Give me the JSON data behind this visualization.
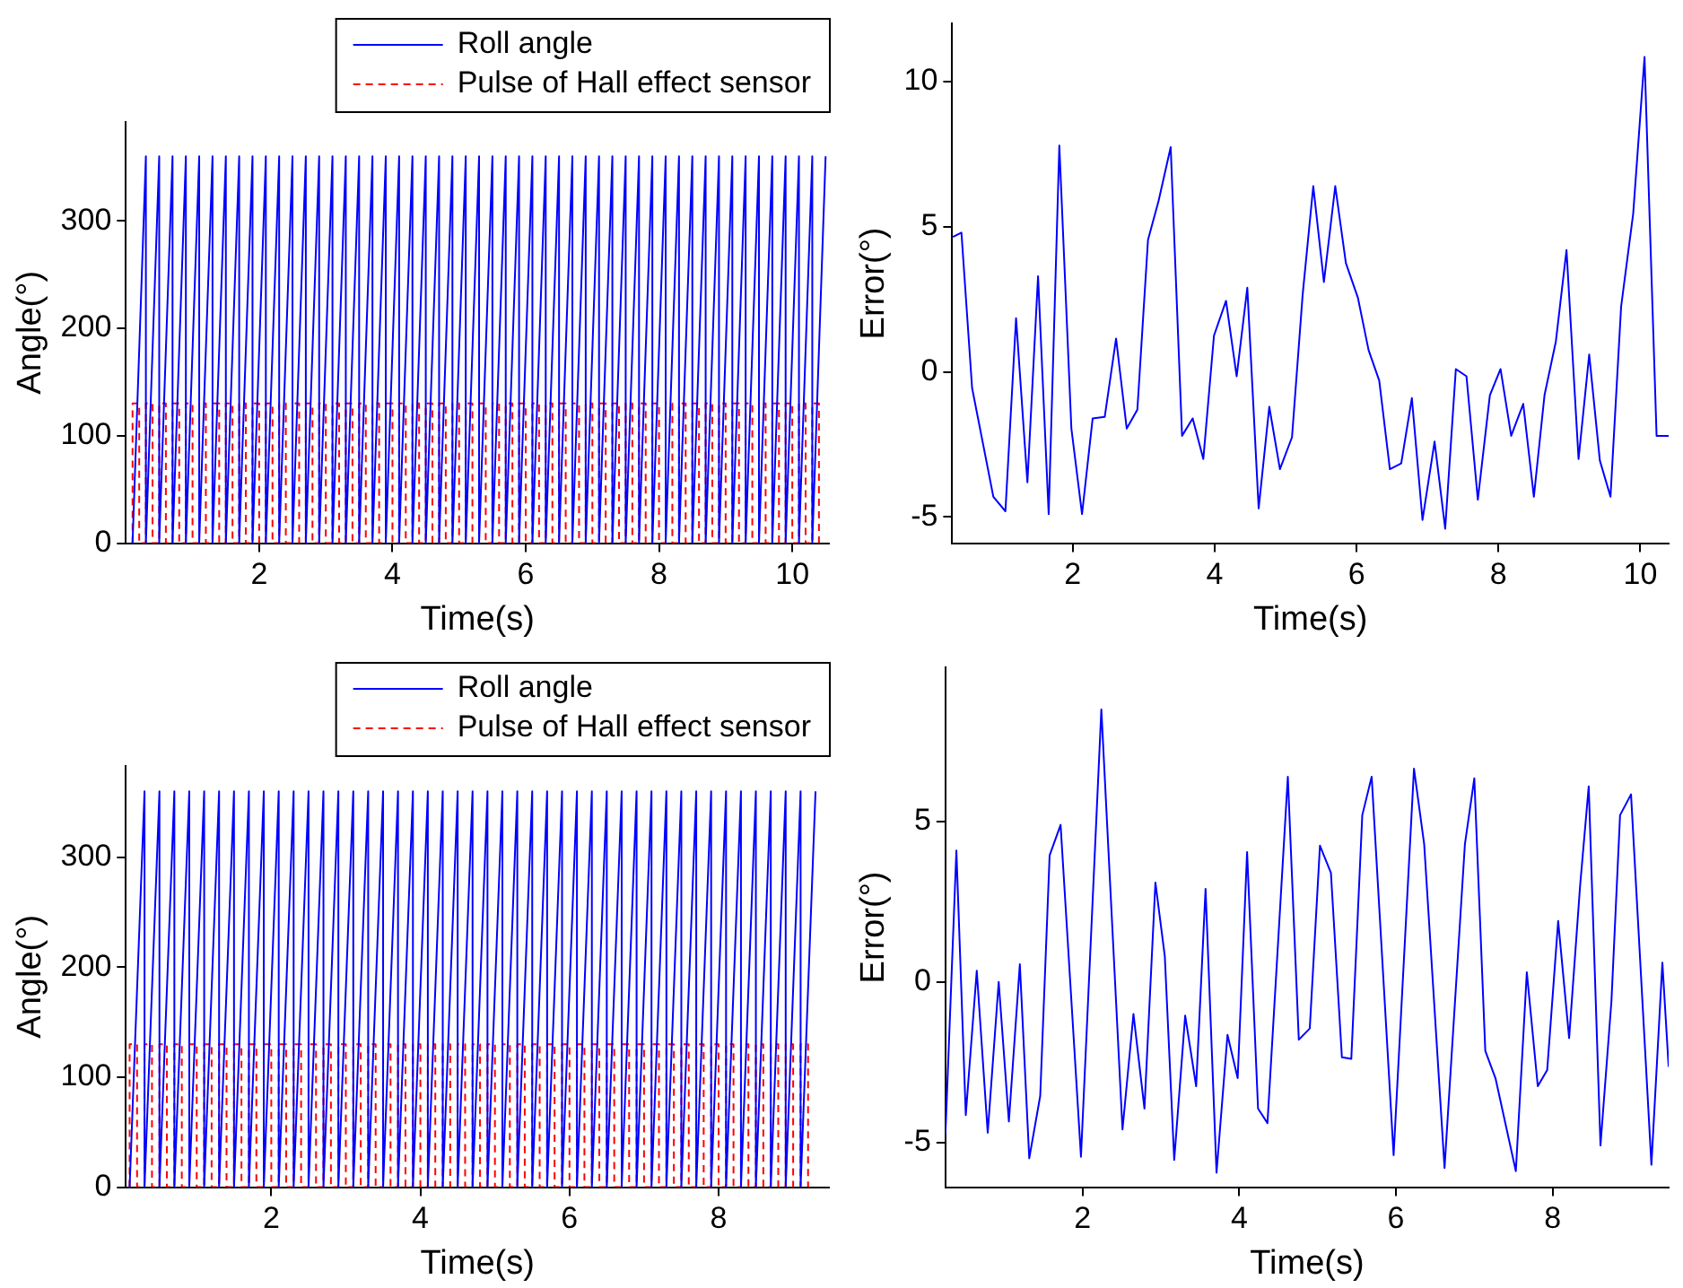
{
  "chart_data": [
    {
      "type": "line",
      "xlabel": "Time(s)",
      "ylabel": "Angle(°)",
      "xlim": [
        0,
        10.55
      ],
      "ylim": [
        0,
        392
      ],
      "xticks": [
        2,
        4,
        6,
        8,
        10
      ],
      "yticks": [
        0,
        100,
        200,
        300
      ],
      "legend": "top right",
      "series": [
        {
          "name": "Roll angle",
          "color": "#0000ff",
          "line_style": "solid",
          "x": [
            0.1,
            0.3,
            0.3,
            0.5,
            0.5,
            0.7,
            0.7,
            0.9,
            0.9,
            1.1,
            1.1,
            1.3,
            1.3,
            1.5,
            1.5,
            1.7,
            1.7,
            1.9,
            1.9,
            2.1,
            2.1,
            2.3,
            2.3,
            2.5,
            2.5,
            2.7,
            2.7,
            2.9,
            2.9,
            3.1,
            3.1,
            3.3,
            3.3,
            3.5,
            3.5,
            3.7,
            3.7,
            3.9,
            3.9,
            4.1,
            4.1,
            4.3,
            4.3,
            4.5,
            4.5,
            4.7,
            4.7,
            4.9,
            4.9,
            5.1,
            5.1,
            5.3,
            5.3,
            5.5,
            5.5,
            5.7,
            5.7,
            5.9,
            5.9,
            6.1,
            6.1,
            6.3,
            6.3,
            6.5,
            6.5,
            6.7,
            6.7,
            6.9,
            6.9,
            7.1,
            7.1,
            7.3,
            7.3,
            7.5,
            7.5,
            7.7,
            7.7,
            7.9,
            7.9,
            8.1,
            8.1,
            8.3,
            8.3,
            8.5,
            8.5,
            8.7,
            8.7,
            8.9,
            8.9,
            9.1,
            9.1,
            9.3,
            9.3,
            9.5,
            9.5,
            9.7,
            9.7,
            9.9,
            9.9,
            10.1,
            10.1,
            10.3,
            10.3,
            10.5
          ],
          "values": [
            0,
            360,
            0,
            360,
            0,
            360,
            0,
            360,
            0,
            360,
            0,
            360,
            0,
            360,
            0,
            360,
            0,
            360,
            0,
            360,
            0,
            360,
            0,
            360,
            0,
            360,
            0,
            360,
            0,
            360,
            0,
            360,
            0,
            360,
            0,
            360,
            0,
            360,
            0,
            360,
            0,
            360,
            0,
            360,
            0,
            360,
            0,
            360,
            0,
            360,
            0,
            360,
            0,
            360,
            0,
            360,
            0,
            360,
            0,
            360,
            0,
            360,
            0,
            360,
            0,
            360,
            0,
            360,
            0,
            360,
            0,
            360,
            0,
            360,
            0,
            360,
            0,
            360,
            0,
            360,
            0,
            360,
            0,
            360,
            0,
            360,
            0,
            360,
            0,
            360,
            0,
            360,
            0,
            360,
            0,
            360,
            0,
            360,
            0,
            360,
            0,
            360,
            0,
            360
          ]
        },
        {
          "name": "Pulse of Hall effect sensor",
          "color": "#ff0000",
          "line_style": "dashed",
          "x": [
            0.1,
            0.1,
            0.2,
            0.2,
            0.3,
            0.3,
            0.4,
            0.4,
            0.5,
            0.5,
            0.6,
            0.6,
            0.7,
            0.7,
            0.8,
            0.8,
            0.9,
            0.9,
            1,
            1,
            1.1,
            1.1,
            1.2,
            1.2,
            1.3,
            1.3,
            1.4,
            1.4,
            1.5,
            1.5,
            1.6,
            1.6,
            1.7,
            1.7,
            1.8,
            1.8,
            1.9,
            1.9,
            2,
            2,
            2.1,
            2.1,
            2.2,
            2.2,
            2.3,
            2.3,
            2.4,
            2.4,
            2.5,
            2.5,
            2.6,
            2.6,
            2.7,
            2.7,
            2.8,
            2.8,
            2.9,
            2.9,
            3,
            3,
            3.1,
            3.1,
            3.2,
            3.2,
            3.3,
            3.3,
            3.4,
            3.4,
            3.5,
            3.5,
            3.6,
            3.6,
            3.7,
            3.7,
            3.8,
            3.8,
            3.9,
            3.9,
            4,
            4,
            4.1,
            4.1,
            4.2,
            4.2,
            4.3,
            4.3,
            4.4,
            4.4,
            4.5,
            4.5,
            4.6,
            4.6,
            4.7,
            4.7,
            4.8,
            4.8,
            4.9,
            4.9,
            5,
            5,
            5.1,
            5.1,
            5.2,
            5.2,
            5.3,
            5.3,
            5.4,
            5.4,
            5.5,
            5.5,
            5.6,
            5.6,
            5.7,
            5.7,
            5.8,
            5.8,
            5.9,
            5.9,
            6,
            6,
            6.1,
            6.1,
            6.2,
            6.2,
            6.3,
            6.3,
            6.4,
            6.4,
            6.5,
            6.5,
            6.6,
            6.6,
            6.7,
            6.7,
            6.8,
            6.8,
            6.9,
            6.9,
            7,
            7,
            7.1,
            7.1,
            7.2,
            7.2,
            7.3,
            7.3,
            7.4,
            7.4,
            7.5,
            7.5,
            7.6,
            7.6,
            7.7,
            7.7,
            7.8,
            7.8,
            7.9,
            7.9,
            8,
            8,
            8.1,
            8.1,
            8.2,
            8.2,
            8.3,
            8.3,
            8.4,
            8.4,
            8.5,
            8.5,
            8.6,
            8.6,
            8.7,
            8.7,
            8.8,
            8.8,
            8.9,
            8.9,
            9,
            9,
            9.1,
            9.1,
            9.2,
            9.2,
            9.3,
            9.3,
            9.4,
            9.4,
            9.5,
            9.5,
            9.6,
            9.6,
            9.7,
            9.7,
            9.8,
            9.8,
            9.9,
            9.9,
            10,
            10,
            10.1,
            10.1,
            10.2,
            10.2,
            10.3,
            10.3,
            10.4,
            10.4
          ],
          "values": [
            0,
            130,
            130,
            0,
            0,
            130,
            130,
            0,
            0,
            130,
            130,
            0,
            0,
            130,
            130,
            0,
            0,
            130,
            130,
            0,
            0,
            130,
            130,
            0,
            0,
            130,
            130,
            0,
            0,
            130,
            130,
            0,
            0,
            130,
            130,
            0,
            0,
            130,
            130,
            0,
            0,
            130,
            130,
            0,
            0,
            130,
            130,
            0,
            0,
            130,
            130,
            0,
            0,
            130,
            130,
            0,
            0,
            130,
            130,
            0,
            0,
            130,
            130,
            0,
            0,
            130,
            130,
            0,
            0,
            130,
            130,
            0,
            0,
            130,
            130,
            0,
            0,
            130,
            130,
            0,
            0,
            130,
            130,
            0,
            0,
            130,
            130,
            0,
            0,
            130,
            130,
            0,
            0,
            130,
            130,
            0,
            0,
            130,
            130,
            0,
            0,
            130,
            130,
            0,
            0,
            130,
            130,
            0,
            0,
            130,
            130,
            0,
            0,
            130,
            130,
            0,
            0,
            130,
            130,
            0,
            0,
            130,
            130,
            0,
            0,
            130,
            130,
            0,
            0,
            130,
            130,
            0,
            0,
            130,
            130,
            0,
            0,
            130,
            130,
            0,
            0,
            130,
            130,
            0,
            0,
            130,
            130,
            0,
            0,
            130,
            130,
            0,
            0,
            130,
            130,
            0,
            0,
            130,
            130,
            0,
            0,
            130,
            130,
            0,
            0,
            130,
            130,
            0,
            0,
            130,
            130,
            0,
            0,
            130,
            130,
            0,
            0,
            130,
            130,
            0,
            0,
            130,
            130,
            0,
            0,
            130,
            130,
            0,
            0,
            130,
            130,
            0,
            0,
            130,
            130,
            0,
            0,
            130,
            130,
            0,
            0,
            130,
            130,
            0,
            0,
            130,
            130,
            0
          ]
        }
      ]
    },
    {
      "type": "line",
      "xlabel": "Time(s)",
      "ylabel": "Error(°)",
      "xlim": [
        0.3,
        10.4
      ],
      "ylim": [
        -5.9,
        12
      ],
      "xticks": [
        2,
        4,
        6,
        8,
        10
      ],
      "yticks": [
        -5,
        0,
        5,
        10
      ],
      "series": [
        {
          "color": "#0000ff",
          "x": [
            0.31,
            0.43,
            0.58,
            0.88,
            1.05,
            1.2,
            1.36,
            1.51,
            1.66,
            1.81,
            1.98,
            2.13,
            2.28,
            2.45,
            2.61,
            2.76,
            2.91,
            3.06,
            3.21,
            3.38,
            3.54,
            3.69,
            3.84,
            3.99,
            4.16,
            4.31,
            4.46,
            4.62,
            4.77,
            4.92,
            5.09,
            5.24,
            5.39,
            5.54,
            5.7,
            5.85,
            6.02,
            6.17,
            6.32,
            6.47,
            6.63,
            6.78,
            6.93,
            7.1,
            7.25,
            7.4,
            7.55,
            7.71,
            7.88,
            8.03,
            8.18,
            8.35,
            8.5,
            8.65,
            8.81,
            8.96,
            9.13,
            9.28,
            9.43,
            9.58,
            9.73,
            9.9,
            10.06,
            10.23,
            10.4
          ],
          "values": [
            4.65,
            4.8,
            -0.55,
            -4.3,
            -4.8,
            1.85,
            -3.8,
            3.3,
            -4.9,
            7.8,
            -1.95,
            -4.9,
            -1.6,
            -1.55,
            1.15,
            -1.95,
            -1.3,
            4.55,
            5.9,
            7.75,
            -2.2,
            -1.6,
            -3,
            1.25,
            2.45,
            -0.15,
            2.9,
            -4.7,
            -1.2,
            -3.35,
            -2.25,
            2.65,
            6.4,
            3.1,
            6.4,
            3.75,
            2.55,
            0.75,
            -0.3,
            -3.35,
            -3.15,
            -0.9,
            -5.1,
            -2.4,
            -5.4,
            0.1,
            -0.15,
            -4.4,
            -0.8,
            0.1,
            -2.2,
            -1.1,
            -4.3,
            -0.8,
            1.05,
            4.2,
            -3,
            0.6,
            -3.05,
            -4.3,
            2.25,
            5.45,
            10.85,
            -2.2,
            -2.2
          ]
        }
      ]
    },
    {
      "type": "line",
      "xlabel": "Time(s)",
      "ylabel": "Angle(°)",
      "xlim": [
        0.05,
        9.48
      ],
      "ylim": [
        0,
        383
      ],
      "xticks": [
        2,
        4,
        6,
        8
      ],
      "yticks": [
        0,
        100,
        200,
        300
      ],
      "legend": "top right",
      "series": [
        {
          "name": "Roll angle",
          "color": "#0000ff",
          "line_style": "solid",
          "x": [
            0.1,
            0.3,
            0.3,
            0.5,
            0.5,
            0.7,
            0.7,
            0.9,
            0.9,
            1.1,
            1.1,
            1.3,
            1.3,
            1.5,
            1.5,
            1.7,
            1.7,
            1.9,
            1.9,
            2.1,
            2.1,
            2.3,
            2.3,
            2.5,
            2.5,
            2.7,
            2.7,
            2.9,
            2.9,
            3.1,
            3.1,
            3.3,
            3.3,
            3.5,
            3.5,
            3.7,
            3.7,
            3.9,
            3.9,
            4.1,
            4.1,
            4.3,
            4.3,
            4.5,
            4.5,
            4.7,
            4.7,
            4.9,
            4.9,
            5.1,
            5.1,
            5.3,
            5.3,
            5.5,
            5.5,
            5.7,
            5.7,
            5.9,
            5.9,
            6.1,
            6.1,
            6.3,
            6.3,
            6.5,
            6.5,
            6.7,
            6.7,
            6.9,
            6.9,
            7.1,
            7.1,
            7.3,
            7.3,
            7.5,
            7.5,
            7.7,
            7.7,
            7.9,
            7.9,
            8.1,
            8.1,
            8.3,
            8.3,
            8.5,
            8.5,
            8.7,
            8.7,
            8.9,
            8.9,
            9.1,
            9.1,
            9.3
          ],
          "values": [
            0,
            360,
            0,
            360,
            0,
            360,
            0,
            360,
            0,
            360,
            0,
            360,
            0,
            360,
            0,
            360,
            0,
            360,
            0,
            360,
            0,
            360,
            0,
            360,
            0,
            360,
            0,
            360,
            0,
            360,
            0,
            360,
            0,
            360,
            0,
            360,
            0,
            360,
            0,
            360,
            0,
            360,
            0,
            360,
            0,
            360,
            0,
            360,
            0,
            360,
            0,
            360,
            0,
            360,
            0,
            360,
            0,
            360,
            0,
            360,
            0,
            360,
            0,
            360,
            0,
            360,
            0,
            360,
            0,
            360,
            0,
            360,
            0,
            360,
            0,
            360,
            0,
            360,
            0,
            360,
            0,
            360,
            0,
            360,
            0,
            360,
            0,
            360,
            0,
            360,
            0,
            360
          ]
        },
        {
          "name": "Pulse of Hall effect sensor",
          "color": "#ff0000",
          "line_style": "dashed",
          "x": [
            0.1,
            0.1,
            0.2,
            0.2,
            0.3,
            0.3,
            0.4,
            0.4,
            0.5,
            0.5,
            0.6,
            0.6,
            0.7,
            0.7,
            0.8,
            0.8,
            0.9,
            0.9,
            1,
            1,
            1.1,
            1.1,
            1.2,
            1.2,
            1.3,
            1.3,
            1.4,
            1.4,
            1.5,
            1.5,
            1.6,
            1.6,
            1.7,
            1.7,
            1.8,
            1.8,
            1.9,
            1.9,
            2,
            2,
            2.1,
            2.1,
            2.2,
            2.2,
            2.3,
            2.3,
            2.4,
            2.4,
            2.5,
            2.5,
            2.6,
            2.6,
            2.7,
            2.7,
            2.8,
            2.8,
            2.9,
            2.9,
            3,
            3,
            3.1,
            3.1,
            3.2,
            3.2,
            3.3,
            3.3,
            3.4,
            3.4,
            3.5,
            3.5,
            3.6,
            3.6,
            3.7,
            3.7,
            3.8,
            3.8,
            3.9,
            3.9,
            4,
            4,
            4.1,
            4.1,
            4.2,
            4.2,
            4.3,
            4.3,
            4.4,
            4.4,
            4.5,
            4.5,
            4.6,
            4.6,
            4.7,
            4.7,
            4.8,
            4.8,
            4.9,
            4.9,
            5,
            5,
            5.1,
            5.1,
            5.2,
            5.2,
            5.3,
            5.3,
            5.4,
            5.4,
            5.5,
            5.5,
            5.6,
            5.6,
            5.7,
            5.7,
            5.8,
            5.8,
            5.9,
            5.9,
            6,
            6,
            6.1,
            6.1,
            6.2,
            6.2,
            6.3,
            6.3,
            6.4,
            6.4,
            6.5,
            6.5,
            6.6,
            6.6,
            6.7,
            6.7,
            6.8,
            6.8,
            6.9,
            6.9,
            7,
            7,
            7.1,
            7.1,
            7.2,
            7.2,
            7.3,
            7.3,
            7.4,
            7.4,
            7.5,
            7.5,
            7.6,
            7.6,
            7.7,
            7.7,
            7.8,
            7.8,
            7.9,
            7.9,
            8,
            8,
            8.1,
            8.1,
            8.2,
            8.2,
            8.3,
            8.3,
            8.4,
            8.4,
            8.5,
            8.5,
            8.6,
            8.6,
            8.7,
            8.7,
            8.8,
            8.8,
            8.9,
            8.9,
            9,
            9,
            9.1,
            9.1,
            9.2,
            9.2
          ],
          "values": [
            0,
            130,
            130,
            0,
            0,
            130,
            130,
            0,
            0,
            130,
            130,
            0,
            0,
            130,
            130,
            0,
            0,
            130,
            130,
            0,
            0,
            130,
            130,
            0,
            0,
            130,
            130,
            0,
            0,
            130,
            130,
            0,
            0,
            130,
            130,
            0,
            0,
            130,
            130,
            0,
            0,
            130,
            130,
            0,
            0,
            130,
            130,
            0,
            0,
            130,
            130,
            0,
            0,
            130,
            130,
            0,
            0,
            130,
            130,
            0,
            0,
            130,
            130,
            0,
            0,
            130,
            130,
            0,
            0,
            130,
            130,
            0,
            0,
            130,
            130,
            0,
            0,
            130,
            130,
            0,
            0,
            130,
            130,
            0,
            0,
            130,
            130,
            0,
            0,
            130,
            130,
            0,
            0,
            130,
            130,
            0,
            0,
            130,
            130,
            0,
            0,
            130,
            130,
            0,
            0,
            130,
            130,
            0,
            0,
            130,
            130,
            0,
            0,
            130,
            130,
            0,
            0,
            130,
            130,
            0,
            0,
            130,
            130,
            0,
            0,
            130,
            130,
            0,
            0,
            130,
            130,
            0,
            0,
            130,
            130,
            0,
            0,
            130,
            130,
            0,
            0,
            130,
            130,
            0,
            0,
            130,
            130,
            0,
            0,
            130,
            130,
            0,
            0,
            130,
            130,
            0,
            0,
            130,
            130,
            0,
            0,
            130,
            130,
            0,
            0,
            130,
            130,
            0,
            0,
            130,
            130,
            0,
            0,
            130,
            130,
            0,
            0,
            130,
            130,
            0,
            0,
            130,
            130,
            0
          ]
        }
      ]
    },
    {
      "type": "line",
      "xlabel": "Time(s)",
      "ylabel": "Error(°)",
      "xlim": [
        0.25,
        9.48
      ],
      "ylim": [
        -6.4,
        9.8
      ],
      "xticks": [
        2,
        4,
        6,
        8
      ],
      "yticks": [
        -5,
        0,
        5
      ],
      "series": [
        {
          "color": "#0000ff",
          "x": [
            0.25,
            0.39,
            0.51,
            0.65,
            0.79,
            0.93,
            1.06,
            1.2,
            1.32,
            1.46,
            1.58,
            1.72,
            1.98,
            2.24,
            2.51,
            2.65,
            2.79,
            2.93,
            3.05,
            3.17,
            3.31,
            3.45,
            3.57,
            3.71,
            3.85,
            3.98,
            4.1,
            4.24,
            4.36,
            4.62,
            4.76,
            4.9,
            5.03,
            5.17,
            5.31,
            5.43,
            5.57,
            5.69,
            5.97,
            6.23,
            6.36,
            6.62,
            6.88,
            7,
            7.14,
            7.27,
            7.53,
            7.67,
            7.81,
            7.93,
            8.07,
            8.21,
            8.35,
            8.46,
            8.61,
            8.75,
            8.86,
            9,
            9.26,
            9.4,
            9.48
          ],
          "values": [
            -4.75,
            4.1,
            -4.15,
            0.35,
            -4.7,
            0,
            -4.35,
            0.55,
            -5.5,
            -3.55,
            3.95,
            4.9,
            -5.45,
            8.5,
            -4.6,
            -1,
            -3.95,
            3.1,
            0.8,
            -5.55,
            -1.05,
            -3.25,
            2.9,
            -5.95,
            -1.65,
            -3,
            4.05,
            -3.95,
            -4.4,
            6.4,
            -1.8,
            -1.45,
            4.25,
            3.4,
            -2.35,
            -2.4,
            5.2,
            6.4,
            -5.4,
            6.65,
            4.3,
            -5.8,
            4.3,
            6.35,
            -2.15,
            -3,
            -5.9,
            0.3,
            -3.25,
            -2.75,
            1.9,
            -1.75,
            3,
            6.1,
            -5.1,
            -0.6,
            5.2,
            5.85,
            -5.7,
            0.6,
            -2.65
          ]
        }
      ]
    }
  ]
}
